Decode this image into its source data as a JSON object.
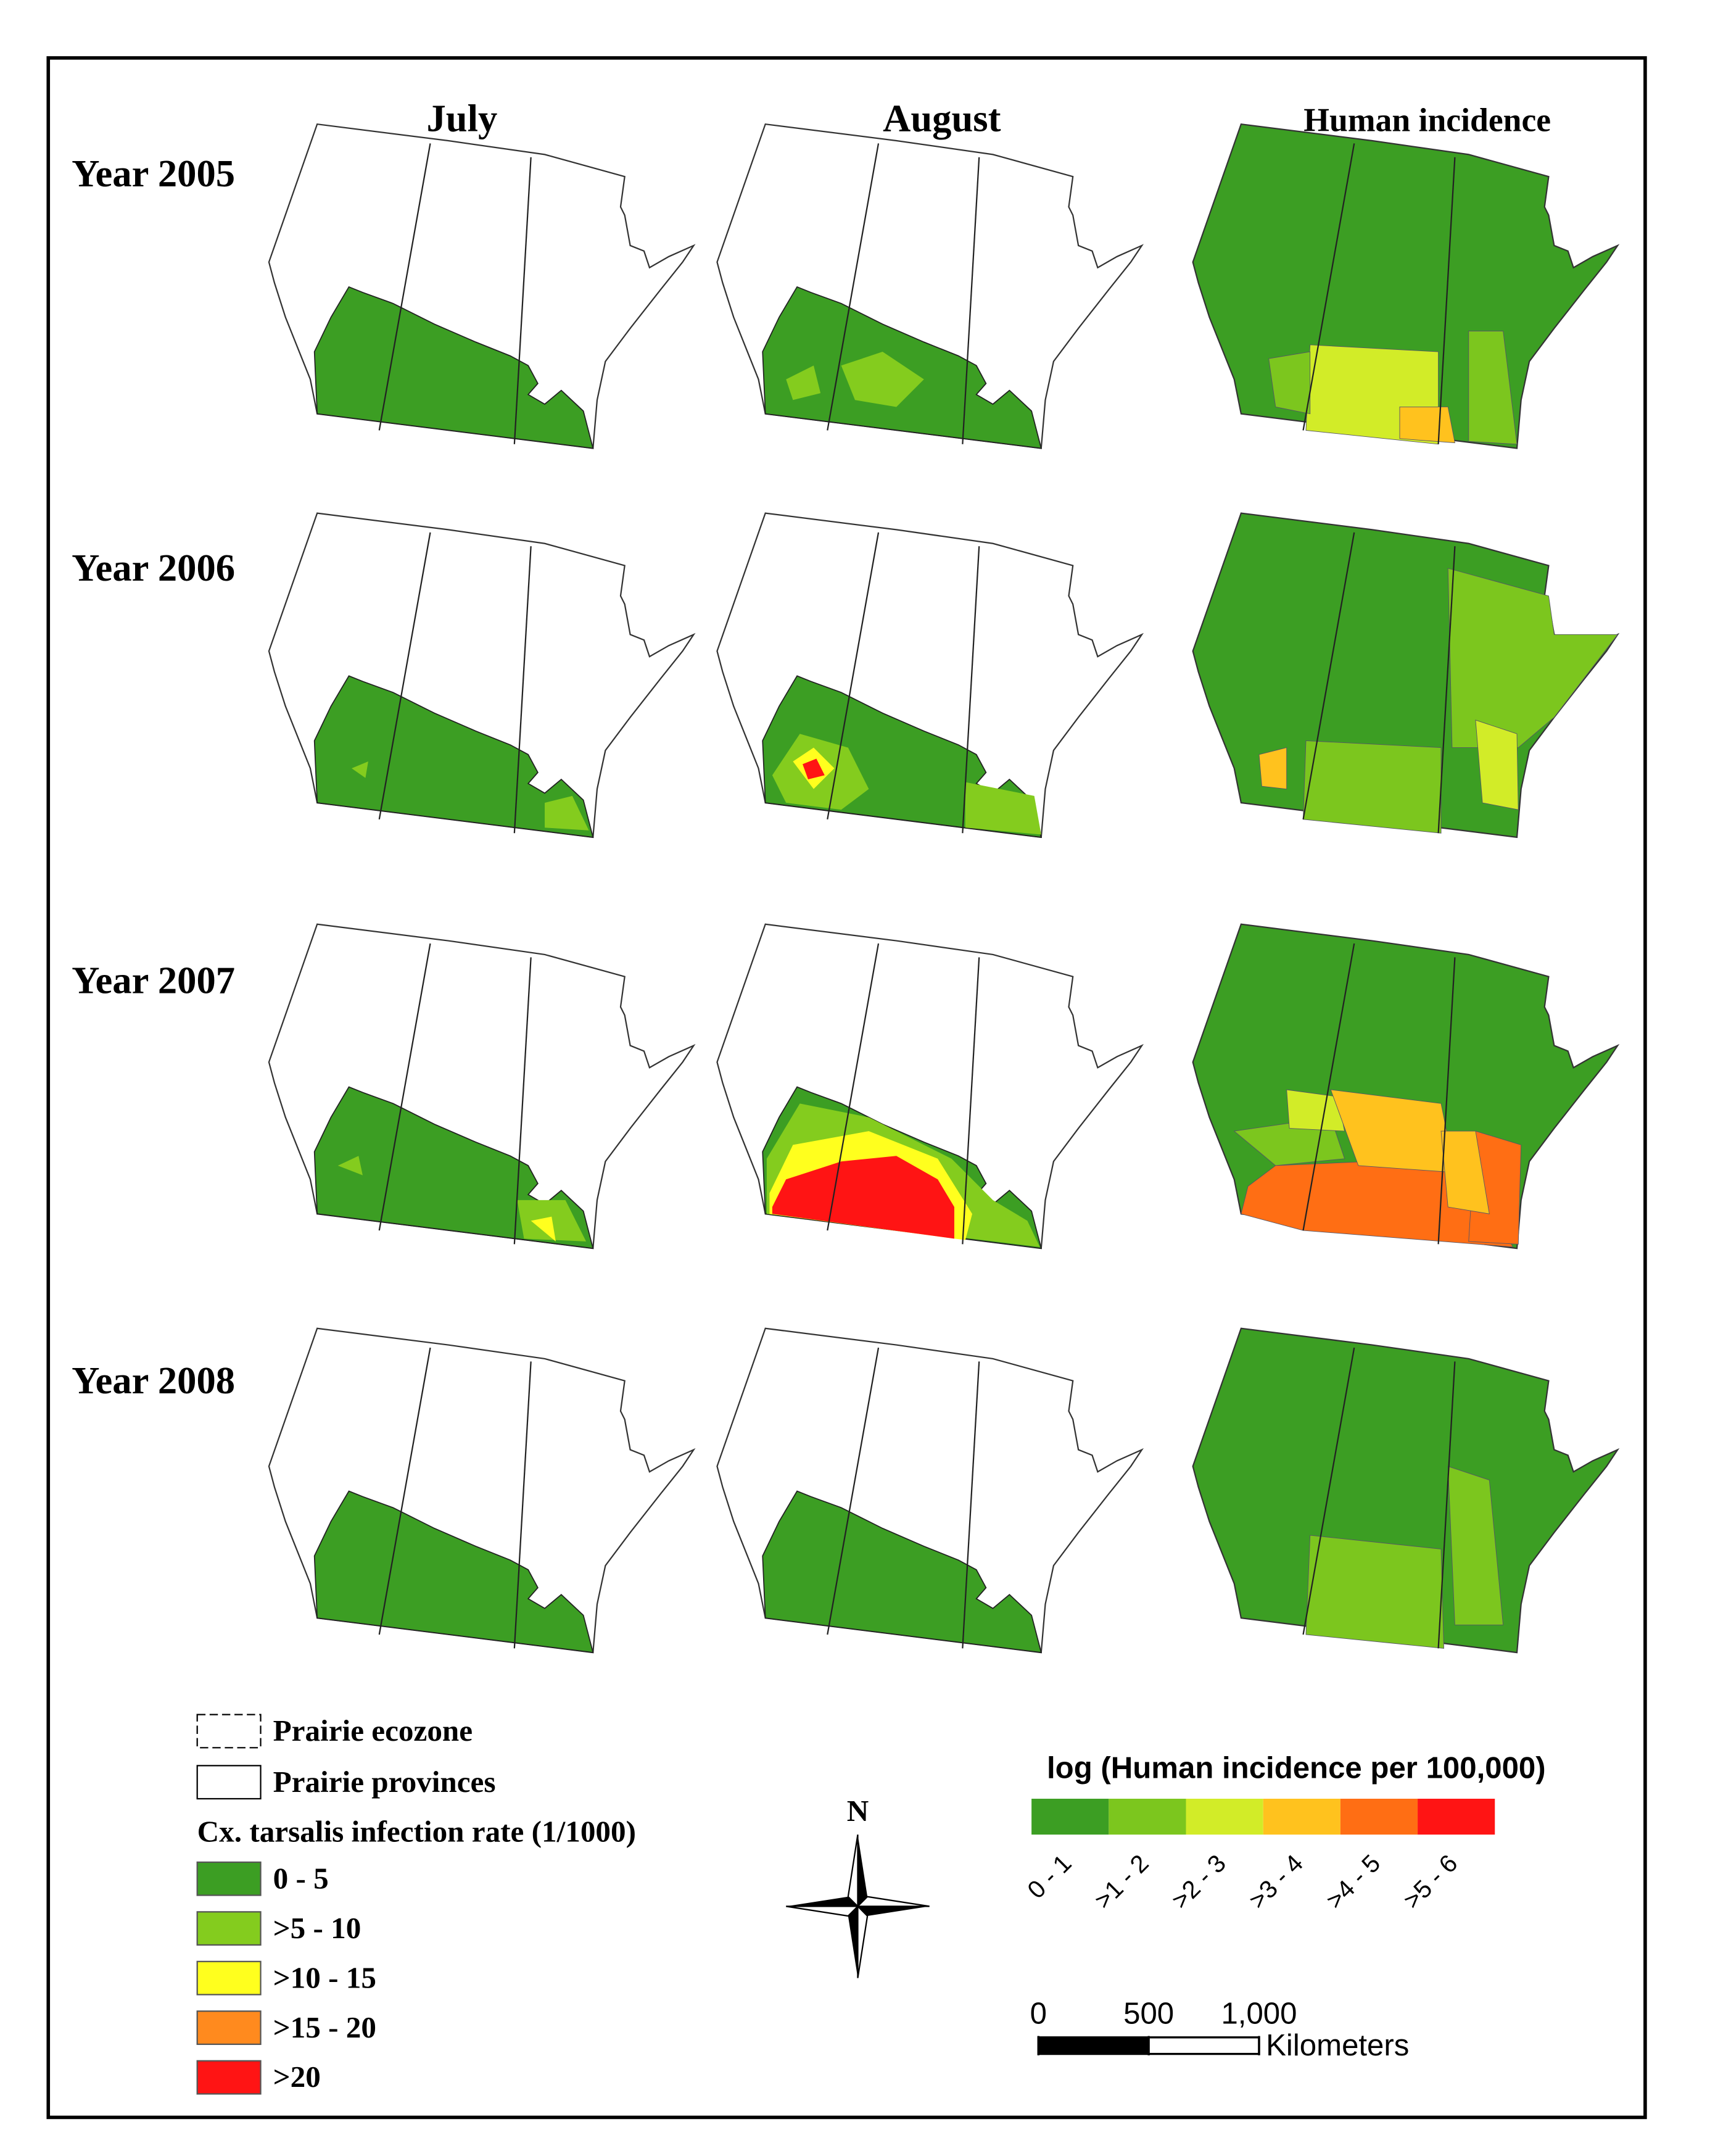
{
  "columns": [
    "July",
    "August",
    "Human incidence"
  ],
  "rows": [
    "Year 2005",
    "Year 2006",
    "Year 2007",
    "Year 2008"
  ],
  "legend_left": {
    "ecozone": "Prairie ecozone",
    "provinces": "Prairie provinces",
    "title": "Cx. tarsalis infection rate (1/1000)",
    "classes": [
      {
        "label": "0 - 5",
        "color": "#3c9e23"
      },
      {
        "label": ">5 - 10",
        "color": "#84cc1e"
      },
      {
        "label": ">10 - 15",
        "color": "#ffff1e"
      },
      {
        "label": ">15 - 20",
        "color": "#ff8a1e"
      },
      {
        "label": ">20",
        "color": "#ff1414"
      }
    ]
  },
  "legend_right": {
    "title": "log (Human incidence per 100,000)",
    "classes": [
      {
        "label": "0 - 1",
        "color": "#3c9e23"
      },
      {
        "label": ">1 - 2",
        "color": "#7cc61e"
      },
      {
        "label": ">2 - 3",
        "color": "#d2ec28"
      },
      {
        "label": ">3 - 4",
        "color": "#ffc21e"
      },
      {
        "label": ">4 - 5",
        "color": "#ff6e14"
      },
      {
        "label": ">5 - 6",
        "color": "#ff1414"
      }
    ]
  },
  "north": "N",
  "scale": {
    "ticks": [
      0,
      500,
      {
        "value": 1000,
        "label": "1,000"
      }
    ],
    "unit": "Kilometers"
  }
}
